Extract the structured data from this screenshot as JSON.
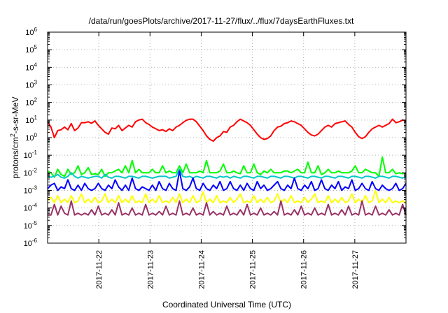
{
  "chart_data": {
    "type": "line",
    "title": "/data/run/goesPlots/archive/2017-11-27/flux/../flux/7daysEarthFluxes.txt",
    "xlabel": "Coordinated Universal Time (UTC)",
    "ylabel_parts": [
      "protons/cm",
      "2",
      "-s-sr-MeV"
    ],
    "y_scale": "log",
    "ylim": [
      1e-06,
      1000000.0
    ],
    "y_tick_labels": [
      {
        "exp": -6,
        "base": "10",
        "power": "-6"
      },
      {
        "exp": -5,
        "base": "10",
        "power": "-5"
      },
      {
        "exp": -4,
        "base": "10",
        "power": "-4"
      },
      {
        "exp": -3,
        "base": "10",
        "power": "-3"
      },
      {
        "exp": -2,
        "base": "10",
        "power": "-2"
      },
      {
        "exp": -1,
        "base": "10",
        "power": "-1"
      },
      {
        "exp": 0,
        "base": "10",
        "power": "0"
      },
      {
        "exp": 1,
        "base": "10",
        "power": "1"
      },
      {
        "exp": 2,
        "base": "10",
        "power": "2"
      },
      {
        "exp": 3,
        "base": "10",
        "power": "3"
      },
      {
        "exp": 4,
        "base": "10",
        "power": "4"
      },
      {
        "exp": 5,
        "base": "10",
        "power": "5"
      },
      {
        "exp": 6,
        "base": "10",
        "power": "6"
      }
    ],
    "xlim": [
      "2017-11-21T00:00",
      "2017-11-28T00:00"
    ],
    "x_ticks": [
      "2017-11-22",
      "2017-11-23",
      "2017-11-24",
      "2017-11-25",
      "2017-11-26",
      "2017-11-27"
    ],
    "grid": true,
    "legend": "none",
    "series": [
      {
        "color": "#ff0000",
        "values_log10": [
          0.9,
          0.6,
          0.0,
          0.4,
          0.45,
          0.6,
          0.45,
          0.8,
          0.4,
          0.55,
          0.85,
          0.85,
          0.9,
          0.82,
          0.95,
          0.7,
          0.5,
          0.3,
          0.2,
          0.55,
          0.5,
          0.7,
          0.4,
          0.55,
          0.7,
          0.6,
          0.9,
          1.0,
          1.05,
          0.85,
          0.75,
          0.6,
          0.5,
          0.4,
          0.45,
          0.35,
          0.5,
          0.4,
          0.6,
          0.7,
          0.85,
          0.98,
          1.05,
          1.05,
          0.9,
          0.65,
          0.4,
          0.1,
          -0.1,
          -0.2,
          0.0,
          0.1,
          0.35,
          0.3,
          0.6,
          0.7,
          0.9,
          1.05,
          0.95,
          0.85,
          0.7,
          0.45,
          0.2,
          0.0,
          -0.1,
          -0.05,
          0.1,
          0.4,
          0.6,
          0.65,
          0.8,
          0.85,
          0.95,
          0.9,
          0.8,
          0.7,
          0.5,
          0.3,
          0.15,
          0.1,
          0.2,
          0.4,
          0.6,
          0.7,
          0.6,
          0.8,
          0.85,
          0.9,
          0.95,
          0.75,
          0.6,
          0.3,
          0.05,
          -0.05,
          0.05,
          0.3,
          0.5,
          0.6,
          0.7,
          0.6,
          0.7,
          0.8,
          1.05,
          0.85,
          0.9,
          1.0,
          0.95
        ]
      },
      {
        "color": "#00ff00",
        "values_log10": [
          -1.9,
          -2.0,
          -2.25,
          -1.8,
          -2.1,
          -2.2,
          -1.8,
          -2.1,
          -2.0,
          -1.6,
          -2.1,
          -2.0,
          -1.7,
          -2.1,
          -2.05,
          -2.1,
          -1.8,
          -2.2,
          -2.0,
          -2.0,
          -1.9,
          -1.8,
          -2.0,
          -1.6,
          -2.0,
          -1.3,
          -2.0,
          -1.8,
          -2.0,
          -2.0,
          -2.0,
          -1.8,
          -2.0,
          -2.0,
          -1.6,
          -2.0,
          -1.9,
          -2.0,
          -2.0,
          -1.6,
          -2.0,
          -1.5,
          -2.0,
          -2.0,
          -2.0,
          -1.9,
          -2.0,
          -1.3,
          -2.0,
          -2.0,
          -2.0,
          -1.9,
          -1.5,
          -2.0,
          -2.0,
          -1.9,
          -2.0,
          -2.05,
          -1.6,
          -2.0,
          -2.0,
          -1.5,
          -2.0,
          -2.1,
          -1.9,
          -2.0,
          -1.8,
          -2.0,
          -2.0,
          -2.0,
          -1.9,
          -1.9,
          -2.0,
          -1.9,
          -1.8,
          -2.0,
          -2.0,
          -1.4,
          -2.0,
          -2.0,
          -1.6,
          -2.1,
          -2.0,
          -1.8,
          -2.0,
          -2.0,
          -1.9,
          -2.0,
          -2.0,
          -2.0,
          -1.9,
          -1.6,
          -2.0,
          -2.0,
          -1.8,
          -1.9,
          -2.0,
          -2.0,
          -2.2,
          -1.1,
          -2.0,
          -2.0,
          -1.8,
          -2.05,
          -2.0,
          -2.05,
          -2.0
        ]
      },
      {
        "color": "#00c8c8",
        "values_log10": [
          -2.2,
          -2.25,
          -2.2,
          -2.1,
          -2.25,
          -2.3,
          -2.2,
          -2.0,
          -2.2,
          -2.3,
          -2.2,
          -2.25,
          -2.3,
          -2.25,
          -2.2,
          -2.2,
          -2.3,
          -2.1,
          -2.25,
          -2.3,
          -2.2,
          -2.2,
          -2.25,
          -2.3,
          -2.2,
          -2.2,
          -2.25,
          -2.3,
          -2.2,
          -2.2,
          -2.25,
          -2.3,
          -2.25,
          -2.2,
          -2.2,
          -2.2,
          -2.3,
          -2.25,
          -2.2,
          -1.8,
          -2.2,
          -2.25,
          -2.2,
          -2.3,
          -2.2,
          -2.25,
          -2.3,
          -2.2,
          -2.2,
          -2.25,
          -2.3,
          -2.2,
          -2.25,
          -2.2,
          -2.3,
          -2.2,
          -2.25,
          -2.3,
          -2.2,
          -2.2,
          -2.25,
          -2.3,
          -2.2,
          -2.2,
          -2.25,
          -2.3,
          -2.2,
          -2.2,
          -2.25,
          -2.3,
          -2.2,
          -2.2,
          -2.25,
          -2.3,
          -2.2,
          -2.2,
          -2.25,
          -2.3,
          -2.2,
          -2.2,
          -2.25,
          -2.3,
          -2.2,
          -2.2,
          -2.25,
          -2.3,
          -2.2,
          -2.2,
          -2.25,
          -2.3,
          -2.2,
          -2.2,
          -2.25,
          -2.3,
          -2.2,
          -2.2,
          -2.25,
          -2.3,
          -2.2,
          -2.2,
          -2.25,
          -2.3,
          -2.2,
          -2.2,
          -2.25,
          -2.3,
          -2.2
        ]
      },
      {
        "color": "#0000ff",
        "values_log10": [
          -2.9,
          -2.7,
          -2.6,
          -3.0,
          -2.8,
          -2.9,
          -2.4,
          -2.9,
          -3.0,
          -2.7,
          -3.0,
          -2.6,
          -2.9,
          -3.0,
          -2.9,
          -2.6,
          -2.9,
          -3.0,
          -2.7,
          -2.9,
          -2.4,
          -2.8,
          -3.0,
          -2.7,
          -3.0,
          -2.3,
          -2.9,
          -3.0,
          -2.8,
          -2.9,
          -3.0,
          -2.7,
          -3.0,
          -2.5,
          -2.9,
          -3.0,
          -2.6,
          -2.9,
          -3.0,
          -1.9,
          -2.9,
          -3.0,
          -2.8,
          -2.3,
          -2.9,
          -3.0,
          -2.6,
          -2.9,
          -3.0,
          -2.7,
          -2.9,
          -2.5,
          -3.0,
          -2.9,
          -2.5,
          -2.9,
          -3.0,
          -2.7,
          -3.0,
          -2.6,
          -2.9,
          -3.0,
          -2.5,
          -2.9,
          -2.7,
          -3.0,
          -2.9,
          -2.7,
          -2.5,
          -2.9,
          -3.0,
          -2.7,
          -2.9,
          -2.3,
          -2.9,
          -3.0,
          -2.7,
          -2.9,
          -2.5,
          -3.0,
          -2.9,
          -2.4,
          -2.9,
          -3.0,
          -2.7,
          -2.9,
          -2.5,
          -3.0,
          -2.8,
          -2.9,
          -2.4,
          -3.0,
          -2.9,
          -2.6,
          -2.9,
          -3.0,
          -2.5,
          -2.9,
          -3.0,
          -2.7,
          -2.9,
          -3.0,
          -2.9,
          -2.6,
          -3.0,
          -2.9,
          -2.6
        ]
      },
      {
        "color": "#ffff00",
        "values_log10": [
          -3.6,
          -3.4,
          -3.7,
          -3.3,
          -3.7,
          -3.5,
          -3.7,
          -3.3,
          -3.7,
          -3.6,
          -3.2,
          -3.7,
          -3.5,
          -3.7,
          -3.4,
          -3.7,
          -3.6,
          -3.2,
          -3.7,
          -3.5,
          -3.7,
          -3.3,
          -3.7,
          -3.5,
          -3.7,
          -3.3,
          -3.7,
          -3.6,
          -3.7,
          -3.2,
          -3.7,
          -3.5,
          -3.7,
          -3.3,
          -3.7,
          -3.6,
          -3.7,
          -3.4,
          -3.7,
          -3.2,
          -3.7,
          -3.5,
          -3.7,
          -3.3,
          -3.7,
          -3.6,
          -3.1,
          -3.7,
          -3.5,
          -3.7,
          -3.3,
          -3.7,
          -3.6,
          -3.7,
          -3.4,
          -3.7,
          -3.5,
          -3.2,
          -3.7,
          -3.6,
          -3.7,
          -3.3,
          -3.7,
          -3.5,
          -3.7,
          -3.4,
          -3.7,
          -3.6,
          -3.2,
          -3.7,
          -3.5,
          -3.7,
          -3.3,
          -3.7,
          -3.6,
          -3.7,
          -3.4,
          -3.7,
          -3.5,
          -3.2,
          -3.7,
          -3.6,
          -3.7,
          -3.3,
          -3.7,
          -3.5,
          -3.7,
          -3.4,
          -3.7,
          -3.6,
          -3.2,
          -3.7,
          -3.5,
          -3.7,
          -3.3,
          -3.7,
          -3.6,
          -3.0,
          -3.7,
          -3.5,
          -3.7,
          -3.4,
          -3.7,
          -3.6,
          -3.7,
          -3.6,
          -3.7
        ]
      },
      {
        "color": "#993366",
        "values_log10": [
          -4.4,
          -4.4,
          -3.8,
          -4.4,
          -3.9,
          -4.3,
          -4.4,
          -3.6,
          -4.4,
          -4.3,
          -4.4,
          -4.3,
          -4.4,
          -4.1,
          -4.4,
          -3.9,
          -4.4,
          -4.3,
          -4.4,
          -4.1,
          -4.4,
          -3.7,
          -4.4,
          -4.3,
          -4.4,
          -4.0,
          -4.4,
          -4.3,
          -4.4,
          -3.8,
          -4.4,
          -4.3,
          -4.4,
          -4.2,
          -4.4,
          -3.9,
          -4.4,
          -4.3,
          -4.4,
          -3.6,
          -4.4,
          -4.3,
          -4.4,
          -4.0,
          -4.4,
          -4.3,
          -4.4,
          -3.7,
          -4.4,
          -4.2,
          -4.4,
          -4.3,
          -4.4,
          -3.9,
          -4.4,
          -4.3,
          -4.4,
          -4.1,
          -4.4,
          -3.8,
          -4.4,
          -4.3,
          -4.4,
          -4.0,
          -4.4,
          -4.3,
          -4.4,
          -4.2,
          -4.4,
          -3.6,
          -4.4,
          -4.3,
          -4.4,
          -4.1,
          -4.4,
          -3.9,
          -4.4,
          -4.3,
          -4.4,
          -4.0,
          -4.4,
          -4.3,
          -4.4,
          -3.8,
          -4.4,
          -4.3,
          -4.4,
          -4.1,
          -4.4,
          -3.9,
          -4.4,
          -4.3,
          -4.4,
          -3.6,
          -4.4,
          -4.3,
          -4.4,
          -3.9,
          -4.4,
          -4.3,
          -4.4,
          -4.1,
          -4.4,
          -4.3,
          -4.4,
          -3.8,
          -4.4
        ]
      }
    ]
  }
}
